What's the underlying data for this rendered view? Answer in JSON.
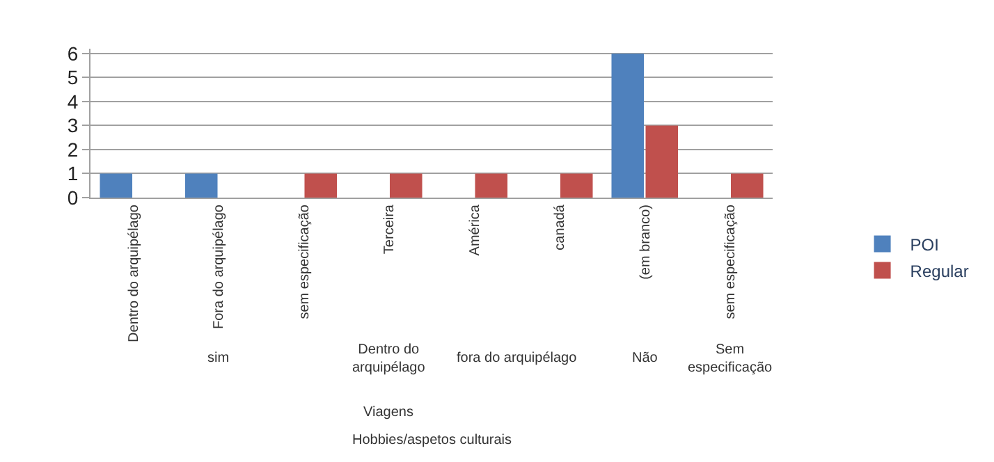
{
  "chart_data": {
    "type": "bar",
    "categories": [
      "Dentro do arquipélago",
      "Fora do arquipélago",
      "sem especificação",
      "Terceira",
      "América",
      "canadá",
      "(em branco)",
      "sem especificação"
    ],
    "series": [
      {
        "name": "POI",
        "color": "#4f81bd",
        "values": [
          1,
          1,
          null,
          null,
          null,
          null,
          6,
          null
        ]
      },
      {
        "name": "Regular",
        "color": "#c0504d",
        "values": [
          null,
          null,
          1,
          1,
          1,
          1,
          3,
          1
        ]
      }
    ],
    "ylim": [
      0,
      6.2
    ],
    "yticks": [
      0,
      1,
      2,
      3,
      4,
      5,
      6
    ],
    "grid": "y",
    "legend": "right",
    "annotations": [
      "sim",
      "Dentro do\narquipélago",
      "fora do arquipélago",
      "Não",
      "Sem\nespecificação",
      "Viagens",
      "Hobbies/aspetos culturais"
    ]
  }
}
